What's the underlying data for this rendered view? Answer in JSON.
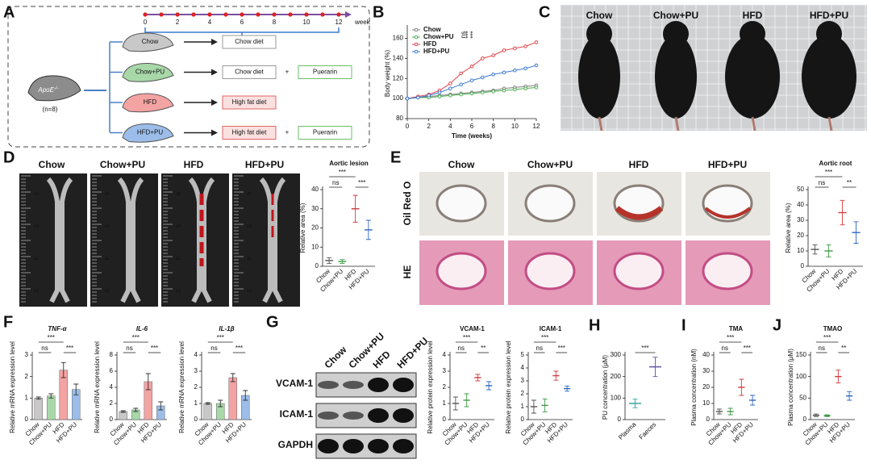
{
  "panel_labels": [
    "A",
    "B",
    "C",
    "D",
    "E",
    "F",
    "G",
    "H",
    "I",
    "J"
  ],
  "groups": [
    "Chow",
    "Chow+PU",
    "HFD",
    "HFD+PU"
  ],
  "panel_a": {
    "weeks": [
      0,
      2,
      4,
      6,
      8,
      10,
      12
    ],
    "week_unit": "week",
    "mouse": "ApoE",
    "mouse_sup": "-/-",
    "n": "(n=8)",
    "diets": [
      {
        "group": "Chow",
        "diet": "Chow diet"
      },
      {
        "group": "Chow+PU",
        "diet": "Chow diet",
        "plus": "+",
        "drug": "Puerarin"
      },
      {
        "group": "HFD",
        "diet": "High fat diet"
      },
      {
        "group": "HFD+PU",
        "diet": "High fat diet",
        "plus": "+",
        "drug": "Puerarin"
      }
    ]
  },
  "panel_d": {
    "ruler": [
      6,
      5,
      4,
      3
    ]
  },
  "panel_e": {
    "stains": [
      "Oil Red O",
      "HE"
    ]
  },
  "panel_g": {
    "blot_labels": [
      "VCAM-1",
      "ICAM-1",
      "GAPDH"
    ]
  },
  "chart_data": [
    {
      "type": "line",
      "x_label": "Time (weeks)",
      "y_label": "Body weight (%)",
      "x": [
        0,
        1,
        2,
        3,
        4,
        5,
        6,
        7,
        8,
        9,
        10,
        11,
        12
      ],
      "xlim": [
        0,
        12
      ],
      "xticks": [
        0,
        2,
        4,
        6,
        8,
        10,
        12
      ],
      "ylim": [
        80,
        170
      ],
      "yticks": [
        80,
        100,
        120,
        140,
        160
      ],
      "legend": "top-left",
      "annotations": [
        "ns",
        "***",
        "***"
      ],
      "series": [
        {
          "name": "Chow",
          "color": "#7f7f7f",
          "values": [
            100,
            101,
            102,
            103,
            104,
            105,
            106,
            107,
            108,
            110,
            111,
            112,
            113
          ]
        },
        {
          "name": "Chow+PU",
          "color": "#4caf50",
          "values": [
            100,
            101,
            101,
            102,
            103,
            104,
            105,
            106,
            107,
            108,
            109,
            110,
            111
          ]
        },
        {
          "name": "HFD",
          "color": "#e0474c",
          "values": [
            100,
            102,
            104,
            108,
            115,
            125,
            132,
            140,
            143,
            148,
            150,
            152,
            156
          ]
        },
        {
          "name": "HFD+PU",
          "color": "#3a78d4",
          "values": [
            100,
            101,
            103,
            106,
            110,
            114,
            118,
            121,
            124,
            126,
            128,
            130,
            133
          ]
        }
      ]
    },
    {
      "type": "dot",
      "title": "Aortic lesion",
      "y_label": "Relative area (%)",
      "categories": [
        "Chow",
        "Chow+PU",
        "HFD",
        "HFD+PU"
      ],
      "values": [
        3,
        2.5,
        30,
        19
      ],
      "errors": [
        1.5,
        1,
        7,
        5
      ],
      "colors": [
        "#555555",
        "#3e9a45",
        "#d23b3f",
        "#2f67c0"
      ],
      "ylim": [
        0,
        40
      ],
      "yticks": [
        0,
        10,
        20,
        30,
        40
      ],
      "significance": [
        {
          "from": "Chow",
          "to": "HFD",
          "label": "***"
        },
        {
          "from": "Chow",
          "to": "Chow+PU",
          "label": "ns"
        },
        {
          "from": "HFD",
          "to": "HFD+PU",
          "label": "***"
        }
      ]
    },
    {
      "type": "dot",
      "title": "Aortic root",
      "y_label": "Relative area (%)",
      "categories": [
        "Chow",
        "Chow+PU",
        "HFD",
        "HFD+PU"
      ],
      "values": [
        11,
        10,
        35,
        22
      ],
      "errors": [
        3,
        4,
        8,
        7
      ],
      "colors": [
        "#555555",
        "#3e9a45",
        "#d23b3f",
        "#2f67c0"
      ],
      "ylim": [
        0,
        50
      ],
      "yticks": [
        0,
        10,
        20,
        30,
        40,
        50
      ],
      "significance": [
        {
          "from": "Chow",
          "to": "HFD",
          "label": "***"
        },
        {
          "from": "Chow",
          "to": "Chow+PU",
          "label": "ns"
        },
        {
          "from": "HFD",
          "to": "HFD+PU",
          "label": "**"
        }
      ]
    },
    {
      "type": "bar",
      "title": "TNF-α",
      "italic": true,
      "y_label": "Relative mRNA expression level",
      "categories": [
        "Chow",
        "Chow+PU",
        "HFD",
        "HFD+PU"
      ],
      "values": [
        1.0,
        1.1,
        2.3,
        1.4
      ],
      "errors": [
        0.05,
        0.1,
        0.35,
        0.25
      ],
      "colors": [
        "#c8c8c8",
        "#a8d8a8",
        "#f4a3a3",
        "#9cbde9"
      ],
      "ylim": [
        0,
        3
      ],
      "yticks": [
        0,
        1,
        2,
        3
      ],
      "significance": [
        {
          "from": "Chow",
          "to": "HFD",
          "label": "***"
        },
        {
          "from": "Chow",
          "to": "Chow+PU",
          "label": "ns"
        },
        {
          "from": "HFD",
          "to": "HFD+PU",
          "label": "***"
        }
      ]
    },
    {
      "type": "bar",
      "title": "IL-6",
      "italic": true,
      "y_label": "Relative mRNA expression level",
      "categories": [
        "Chow",
        "Chow+PU",
        "HFD",
        "HFD+PU"
      ],
      "values": [
        1.0,
        1.2,
        4.7,
        1.7
      ],
      "errors": [
        0.1,
        0.2,
        1.0,
        0.5
      ],
      "colors": [
        "#c8c8c8",
        "#a8d8a8",
        "#f4a3a3",
        "#9cbde9"
      ],
      "ylim": [
        0,
        8
      ],
      "yticks": [
        0,
        2,
        4,
        6,
        8
      ],
      "significance": [
        {
          "from": "Chow",
          "to": "HFD",
          "label": "***"
        },
        {
          "from": "Chow",
          "to": "Chow+PU",
          "label": "ns"
        },
        {
          "from": "HFD",
          "to": "HFD+PU",
          "label": "***"
        }
      ]
    },
    {
      "type": "bar",
      "title": "IL-1β",
      "italic": true,
      "y_label": "Relative mRNA expression level",
      "categories": [
        "Chow",
        "Chow+PU",
        "HFD",
        "HFD+PU"
      ],
      "values": [
        1.0,
        1.0,
        2.6,
        1.5
      ],
      "errors": [
        0.05,
        0.2,
        0.25,
        0.3
      ],
      "colors": [
        "#c8c8c8",
        "#a8d8a8",
        "#f4a3a3",
        "#9cbde9"
      ],
      "ylim": [
        0,
        4
      ],
      "yticks": [
        0,
        1,
        2,
        3,
        4
      ],
      "significance": [
        {
          "from": "Chow",
          "to": "HFD",
          "label": "***"
        },
        {
          "from": "Chow",
          "to": "Chow+PU",
          "label": "ns"
        },
        {
          "from": "HFD",
          "to": "HFD+PU",
          "label": "***"
        }
      ]
    },
    {
      "type": "dot",
      "title": "VCAM-1",
      "y_label": "Relative protein expression level",
      "categories": [
        "Chow",
        "Chow+PU",
        "HFD",
        "HFD+PU"
      ],
      "values": [
        1.0,
        1.2,
        2.6,
        2.1
      ],
      "errors": [
        0.4,
        0.4,
        0.2,
        0.25
      ],
      "colors": [
        "#555555",
        "#3e9a45",
        "#d23b3f",
        "#2f67c0"
      ],
      "ylim": [
        0,
        4
      ],
      "yticks": [
        0,
        1,
        2,
        3,
        4
      ],
      "significance": [
        {
          "from": "Chow",
          "to": "HFD",
          "label": "***"
        },
        {
          "from": "Chow",
          "to": "Chow+PU",
          "label": "ns"
        },
        {
          "from": "HFD",
          "to": "HFD+PU",
          "label": "**"
        }
      ]
    },
    {
      "type": "dot",
      "title": "ICAM-1",
      "y_label": "Relative protein expression level",
      "categories": [
        "Chow",
        "Chow+PU",
        "HFD",
        "HFD+PU"
      ],
      "values": [
        1.0,
        1.1,
        3.4,
        2.4
      ],
      "errors": [
        0.5,
        0.5,
        0.35,
        0.2
      ],
      "colors": [
        "#555555",
        "#3e9a45",
        "#d23b3f",
        "#2f67c0"
      ],
      "ylim": [
        0,
        5
      ],
      "yticks": [
        0,
        1,
        2,
        3,
        4,
        5
      ],
      "significance": [
        {
          "from": "Chow",
          "to": "HFD",
          "label": "***"
        },
        {
          "from": "Chow",
          "to": "Chow+PU",
          "label": "ns"
        },
        {
          "from": "HFD",
          "to": "HFD+PU",
          "label": "***"
        }
      ]
    },
    {
      "type": "dot",
      "y_label": "PU concentration (μM)",
      "categories": [
        "Plasma",
        "Faeces"
      ],
      "values": [
        75,
        245
      ],
      "errors": [
        20,
        45
      ],
      "colors": [
        "#2aa39a",
        "#5a4fb0"
      ],
      "ylim": [
        0,
        300
      ],
      "yticks": [
        0,
        100,
        200,
        300
      ],
      "significance": [
        {
          "from": "Plasma",
          "to": "Faeces",
          "label": "***"
        }
      ]
    },
    {
      "type": "dot",
      "title": "TMA",
      "y_label": "Plasma concentration (nM)",
      "categories": [
        "Chow",
        "Chow+PU",
        "HFD",
        "HFD+PU"
      ],
      "values": [
        5,
        5,
        20,
        12
      ],
      "errors": [
        1.5,
        2,
        5,
        3
      ],
      "colors": [
        "#555555",
        "#3e9a45",
        "#d23b3f",
        "#2f67c0"
      ],
      "ylim": [
        0,
        40
      ],
      "yticks": [
        0,
        10,
        20,
        30,
        40
      ],
      "significance": [
        {
          "from": "Chow",
          "to": "HFD",
          "label": "***"
        },
        {
          "from": "Chow",
          "to": "Chow+PU",
          "label": "ns"
        },
        {
          "from": "HFD",
          "to": "HFD+PU",
          "label": "***"
        }
      ]
    },
    {
      "type": "dot",
      "title": "TMAO",
      "y_label": "Plasma concentration (μM)",
      "categories": [
        "Chow",
        "Chow+PU",
        "HFD",
        "HFD+PU"
      ],
      "values": [
        10,
        9,
        100,
        55
      ],
      "errors": [
        3,
        2,
        15,
        10
      ],
      "colors": [
        "#555555",
        "#3e9a45",
        "#d23b3f",
        "#2f67c0"
      ],
      "ylim": [
        0,
        150
      ],
      "yticks": [
        0,
        50,
        100,
        150
      ],
      "significance": [
        {
          "from": "Chow",
          "to": "HFD",
          "label": "***"
        },
        {
          "from": "Chow",
          "to": "Chow+PU",
          "label": "ns"
        },
        {
          "from": "HFD",
          "to": "HFD+PU",
          "label": "**"
        }
      ]
    }
  ]
}
